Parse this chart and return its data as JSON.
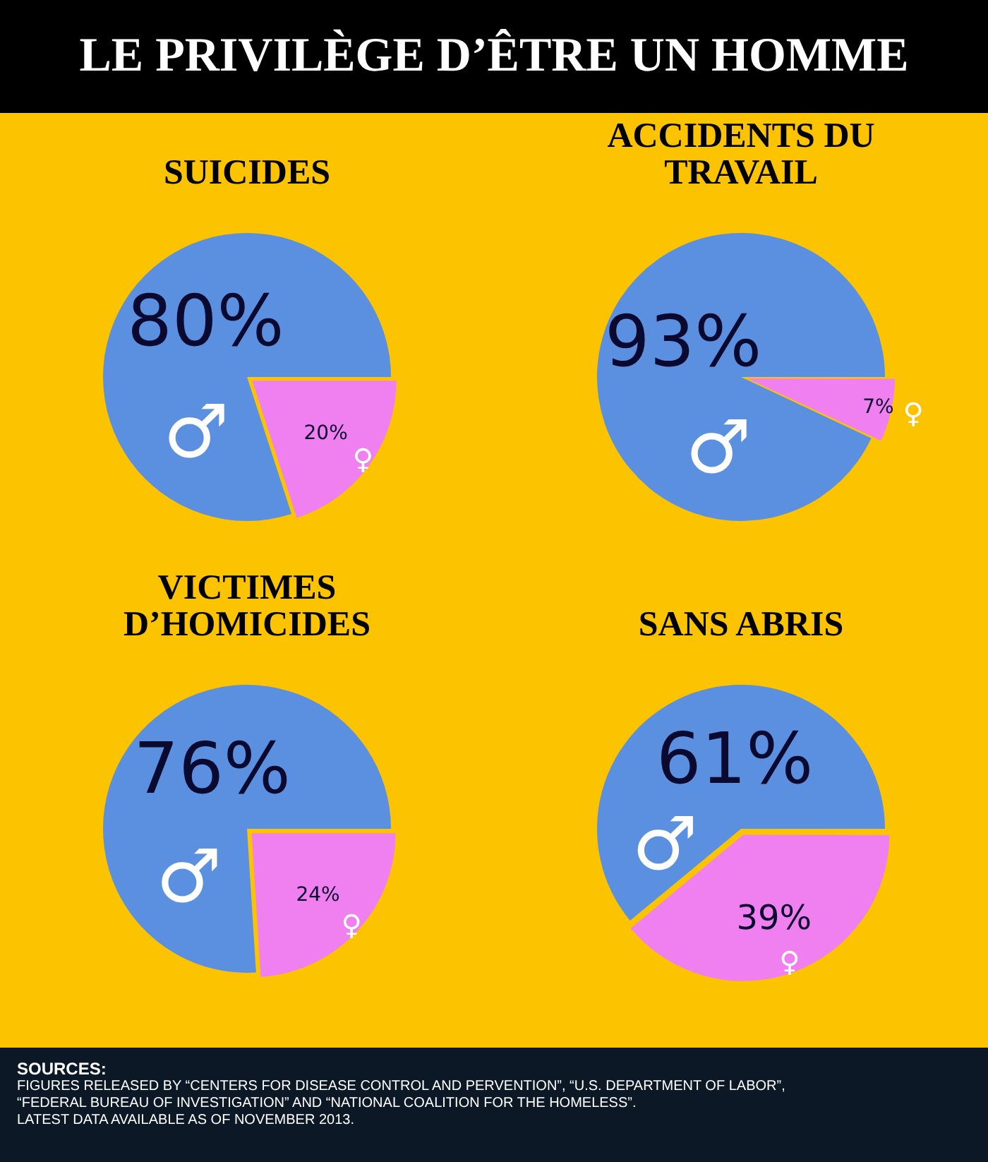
{
  "chart_data": [
    {
      "type": "other",
      "title": "LE PRIVILÈGE D’ÊTRE UN HOMME"
    },
    {
      "type": "pie",
      "title": "SUICIDES",
      "categories": [
        "♂",
        "♀"
      ],
      "values": [
        80,
        20
      ],
      "colors": [
        "#5b8fe0",
        "#f080f0"
      ],
      "value_labels": [
        "80%",
        "20%"
      ],
      "legend": false
    },
    {
      "type": "pie",
      "title": "ACCIDENTS DU TRAVAIL",
      "categories": [
        "♂",
        "♀"
      ],
      "values": [
        93,
        7
      ],
      "colors": [
        "#5b8fe0",
        "#f080f0"
      ],
      "value_labels": [
        "93%",
        "7%"
      ],
      "legend": false
    },
    {
      "type": "pie",
      "title": "VICTIMES D’HOMICIDES",
      "categories": [
        "♂",
        "♀"
      ],
      "values": [
        76,
        24
      ],
      "colors": [
        "#5b8fe0",
        "#f080f0"
      ],
      "value_labels": [
        "76%",
        "24%"
      ],
      "legend": false
    },
    {
      "type": "pie",
      "title": "SANS ABRIS",
      "categories": [
        "♂",
        "♀"
      ],
      "values": [
        61,
        39
      ],
      "colors": [
        "#5b8fe0",
        "#f080f0"
      ],
      "value_labels": [
        "61%",
        "39%"
      ],
      "legend": false
    },
    {
      "type": "other",
      "annotations": [
        "SOURCES:",
        "FIGURES RELEASED BY “CENTERS FOR DISEASE CONTROL AND PERVENTION”, “U.S. DEPARTMENT OF LABOR”,",
        "“FEDERAL BUREAU OF INVESTIGATION” AND “NATIONAL COALITION FOR THE HOMELESS”.",
        "LATEST DATA AVAILABLE AS OF NOVEMBER 2013."
      ]
    }
  ]
}
